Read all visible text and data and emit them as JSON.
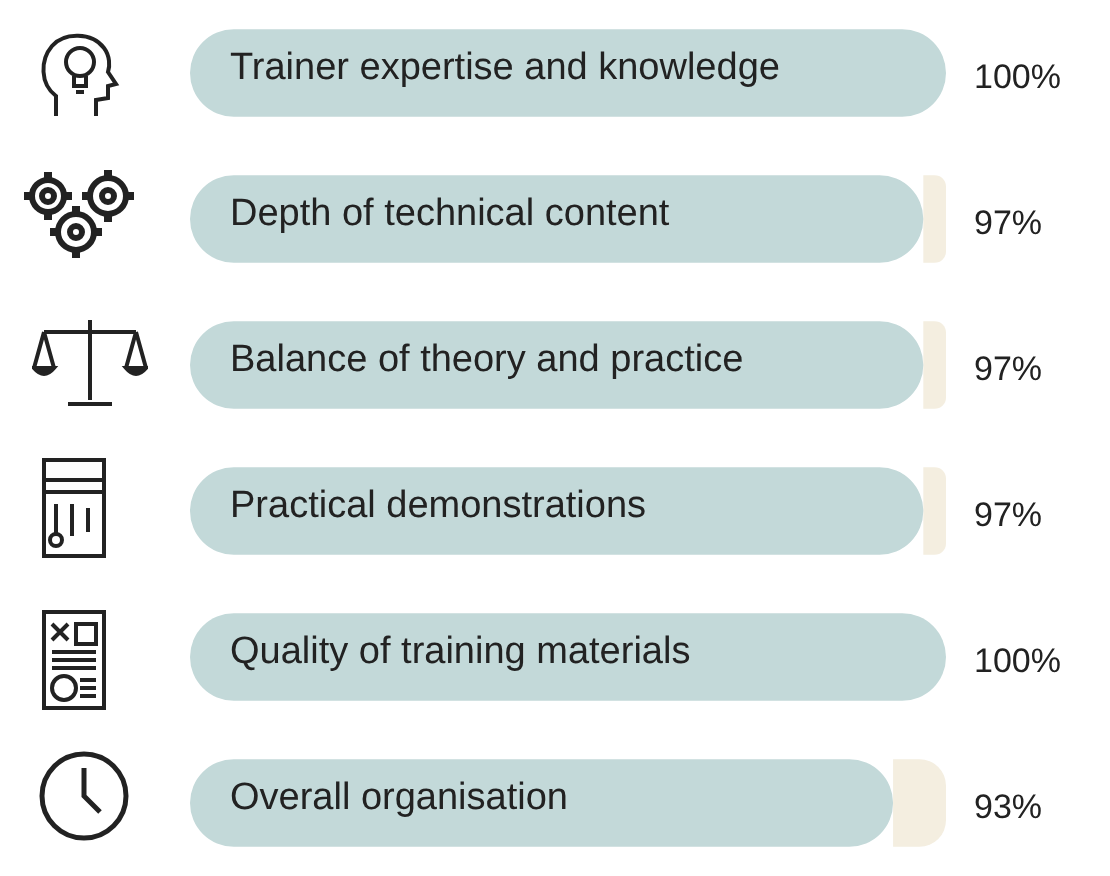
{
  "chart_data": {
    "type": "bar",
    "orientation": "horizontal",
    "stacked": true,
    "xlim": [
      0,
      100
    ],
    "tick_labels": false,
    "legend": false,
    "categories": [
      "Trainer expertise and knowledge",
      "Depth of technical content",
      "Balance of theory and practice",
      "Practical demonstrations",
      "Quality of training materials",
      "Overall organisation"
    ],
    "series": [
      {
        "color": "#c3d9d9",
        "values": [
          100,
          97,
          97,
          97,
          100,
          93
        ],
        "value_labels": [
          "100%",
          "97%",
          "97%",
          "97%",
          "100%",
          "93%"
        ]
      },
      {
        "color": "#f4eee0",
        "values": [
          0,
          3,
          3,
          3,
          0,
          7
        ]
      }
    ]
  }
}
